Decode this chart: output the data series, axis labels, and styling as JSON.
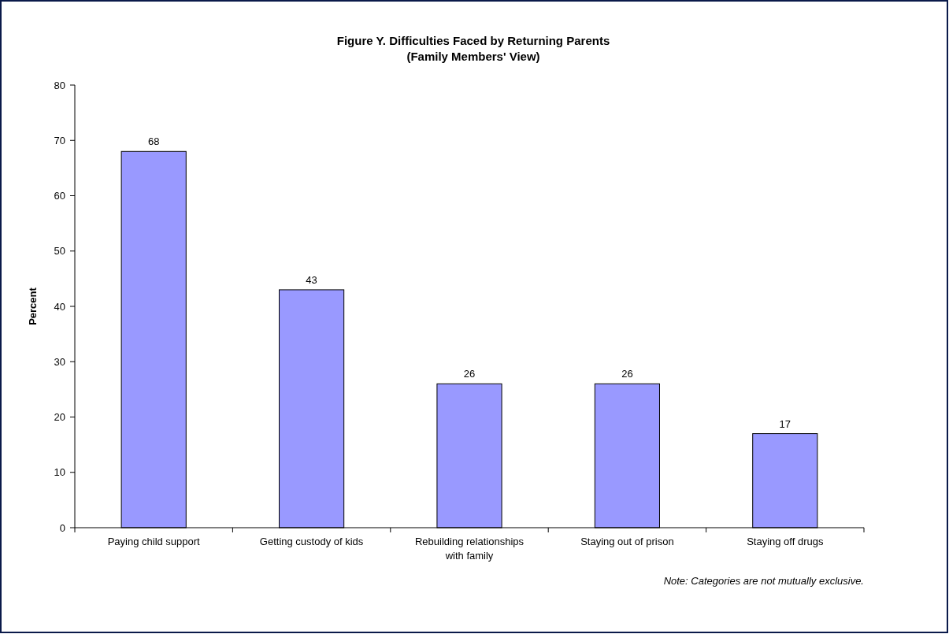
{
  "chart_data": {
    "type": "bar",
    "title": "Figure Y.  Difficulties Faced by Returning Parents",
    "subtitle": "(Family Members' View)",
    "ylabel": "Percent",
    "categories": [
      "Paying child support",
      "Getting custody of kids",
      "Rebuilding relationships with family",
      "Staying out of prison",
      "Staying off drugs"
    ],
    "values": [
      68,
      43,
      26,
      26,
      17
    ],
    "color": "#9999ff",
    "ylim": [
      0,
      80
    ],
    "yticks": [
      0,
      10,
      20,
      30,
      40,
      50,
      60,
      70,
      80
    ],
    "grid": false,
    "data_labels": true,
    "annotations": [
      "Note: Categories are not mutually exclusive."
    ]
  }
}
